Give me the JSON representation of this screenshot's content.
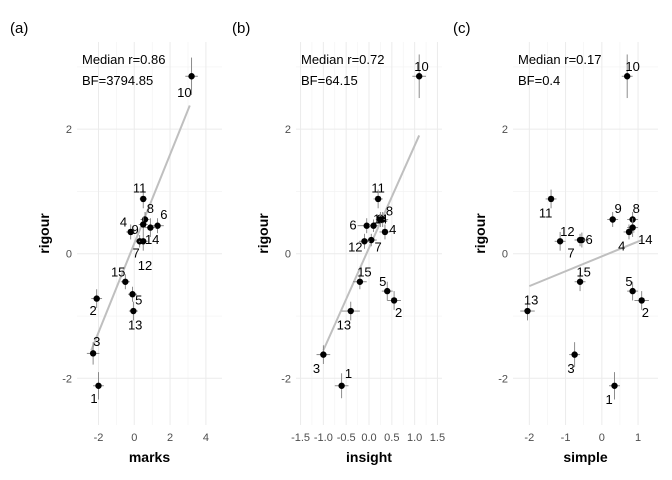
{
  "chart_data": [
    {
      "type": "scatter",
      "panel_tag": "(a)",
      "xlabel": "marks",
      "ylabel": "rigour",
      "xlim": [
        -3.2,
        4.9
      ],
      "ylim": [
        -2.75,
        3.4
      ],
      "xticks": [
        -2,
        0,
        2,
        4
      ],
      "yticks": [
        -2,
        0,
        2
      ],
      "annotations": [
        "Median r=0.86",
        "BF=3794.85"
      ],
      "fit": {
        "x": [
          -2.4,
          3.1
        ],
        "y": [
          -1.55,
          2.38
        ]
      },
      "points": [
        {
          "label": "1",
          "x": -2.0,
          "y": -2.12,
          "xerr": 0.3,
          "yerr": 0.22,
          "lx": -2.25,
          "ly": -2.33
        },
        {
          "label": "2",
          "x": -2.1,
          "y": -0.72,
          "xerr": 0.3,
          "yerr": 0.15,
          "lx": -2.3,
          "ly": -0.92
        },
        {
          "label": "3",
          "x": -2.3,
          "y": -1.6,
          "xerr": 0.35,
          "yerr": 0.18,
          "lx": -2.1,
          "ly": -1.42
        },
        {
          "label": "4",
          "x": -0.2,
          "y": 0.35,
          "xerr": 0.25,
          "yerr": 0.12,
          "lx": -0.6,
          "ly": 0.5
        },
        {
          "label": "5",
          "x": -0.1,
          "y": -0.65,
          "xerr": 0.25,
          "yerr": 0.12,
          "lx": 0.25,
          "ly": -0.75
        },
        {
          "label": "6",
          "x": 1.3,
          "y": 0.45,
          "xerr": 0.35,
          "yerr": 0.12,
          "lx": 1.65,
          "ly": 0.62
        },
        {
          "label": "7",
          "x": 0.3,
          "y": 0.2,
          "xerr": 0.2,
          "yerr": 0.1,
          "lx": 0.1,
          "ly": 0.0
        },
        {
          "label": "8",
          "x": 0.6,
          "y": 0.55,
          "xerr": 0.25,
          "yerr": 0.12,
          "lx": 0.9,
          "ly": 0.72
        },
        {
          "label": "9",
          "x": 0.5,
          "y": 0.47,
          "xerr": 0.25,
          "yerr": 0.12,
          "lx": 0.05,
          "ly": 0.38
        },
        {
          "label": "10",
          "x": 3.2,
          "y": 2.85,
          "xerr": 0.35,
          "yerr": 0.3,
          "lx": 2.8,
          "ly": 2.58
        },
        {
          "label": "11",
          "x": 0.5,
          "y": 0.88,
          "xerr": 0.2,
          "yerr": 0.15,
          "lx": 0.3,
          "ly": 1.05
        },
        {
          "label": "12",
          "x": 0.5,
          "y": 0.2,
          "xerr": 0.25,
          "yerr": 0.15,
          "lx": 0.6,
          "ly": -0.2
        },
        {
          "label": "13",
          "x": -0.05,
          "y": -0.92,
          "xerr": 0.25,
          "yerr": 0.15,
          "lx": 0.05,
          "ly": -1.15
        },
        {
          "label": "14",
          "x": 0.9,
          "y": 0.42,
          "xerr": 0.3,
          "yerr": 0.15,
          "lx": 1.0,
          "ly": 0.22
        },
        {
          "label": "15",
          "x": -0.5,
          "y": -0.45,
          "xerr": 0.25,
          "yerr": 0.12,
          "lx": -0.9,
          "ly": -0.3
        }
      ]
    },
    {
      "type": "scatter",
      "panel_tag": "(b)",
      "xlabel": "insight",
      "ylabel": "rigour",
      "xlim": [
        -1.6,
        1.6
      ],
      "ylim": [
        -2.75,
        3.4
      ],
      "xticks": [
        -1.5,
        -1.0,
        -0.5,
        0.0,
        0.5,
        1.0,
        1.5
      ],
      "xtick_labels": [
        "-1.5",
        "-1.0",
        "-0.5",
        "0.0",
        "0.5",
        "1.0",
        "1.5"
      ],
      "yticks": [
        -2,
        0,
        2
      ],
      "annotations": [
        "Median r=0.72",
        "BF=64.15"
      ],
      "fit": {
        "x": [
          -1.0,
          1.1
        ],
        "y": [
          -1.55,
          1.9
        ]
      },
      "points": [
        {
          "label": "1",
          "x": -0.6,
          "y": -2.12,
          "xerr": 0.15,
          "yerr": 0.2,
          "lx": -0.45,
          "ly": -1.93
        },
        {
          "label": "2",
          "x": 0.55,
          "y": -0.75,
          "xerr": 0.15,
          "yerr": 0.15,
          "lx": 0.65,
          "ly": -0.95
        },
        {
          "label": "3",
          "x": -1.0,
          "y": -1.62,
          "xerr": 0.15,
          "yerr": 0.15,
          "lx": -1.15,
          "ly": -1.85
        },
        {
          "label": "4",
          "x": 0.35,
          "y": 0.35,
          "xerr": 0.12,
          "yerr": 0.12,
          "lx": 0.52,
          "ly": 0.38
        },
        {
          "label": "5",
          "x": 0.4,
          "y": -0.6,
          "xerr": 0.12,
          "yerr": 0.15,
          "lx": 0.3,
          "ly": -0.45
        },
        {
          "label": "6",
          "x": -0.05,
          "y": 0.45,
          "xerr": 0.2,
          "yerr": 0.12,
          "lx": -0.35,
          "ly": 0.45
        },
        {
          "label": "7",
          "x": 0.05,
          "y": 0.22,
          "xerr": 0.12,
          "yerr": 0.1,
          "lx": 0.2,
          "ly": 0.1
        },
        {
          "label": "8",
          "x": 0.3,
          "y": 0.55,
          "xerr": 0.12,
          "yerr": 0.12,
          "lx": 0.45,
          "ly": 0.68
        },
        {
          "label": "9",
          "x": 0.1,
          "y": 0.45,
          "xerr": 0.1,
          "yerr": 0.1,
          "lx": 0.25,
          "ly": 0.55
        },
        {
          "label": "10",
          "x": 1.1,
          "y": 2.85,
          "xerr": 0.15,
          "yerr": 0.35,
          "lx": 1.15,
          "ly": 3.0
        },
        {
          "label": "11",
          "x": 0.2,
          "y": 0.88,
          "xerr": 0.1,
          "yerr": 0.15,
          "lx": 0.2,
          "ly": 1.05
        },
        {
          "label": "12",
          "x": -0.1,
          "y": 0.2,
          "xerr": 0.12,
          "yerr": 0.12,
          "lx": -0.3,
          "ly": 0.1
        },
        {
          "label": "13",
          "x": -0.4,
          "y": -0.92,
          "xerr": 0.2,
          "yerr": 0.15,
          "lx": -0.55,
          "ly": -1.15
        },
        {
          "label": "14",
          "x": 0.25,
          "y": 0.55,
          "xerr": 0.1,
          "yerr": 0.12,
          "lx": 0.25,
          "ly": 0.55
        },
        {
          "label": "15",
          "x": -0.2,
          "y": -0.45,
          "xerr": 0.15,
          "yerr": 0.12,
          "lx": -0.1,
          "ly": -0.3
        }
      ]
    },
    {
      "type": "scatter",
      "panel_tag": "(c)",
      "xlabel": "simple",
      "ylabel": "rigour",
      "xlim": [
        -2.45,
        1.55
      ],
      "ylim": [
        -2.75,
        3.4
      ],
      "xticks": [
        -2,
        -1,
        0,
        1
      ],
      "yticks": [
        -2,
        0,
        2
      ],
      "annotations": [
        "Median r=0.17",
        "BF=0.4"
      ],
      "fit": {
        "x": [
          -2.0,
          1.1
        ],
        "y": [
          -0.52,
          0.22
        ]
      },
      "points": [
        {
          "label": "1",
          "x": 0.35,
          "y": -2.12,
          "xerr": 0.15,
          "yerr": 0.22,
          "lx": 0.2,
          "ly": -2.35
        },
        {
          "label": "2",
          "x": 1.1,
          "y": -0.75,
          "xerr": 0.2,
          "yerr": 0.15,
          "lx": 1.2,
          "ly": -0.95
        },
        {
          "label": "3",
          "x": -0.75,
          "y": -1.62,
          "xerr": 0.15,
          "yerr": 0.2,
          "lx": -0.85,
          "ly": -1.85
        },
        {
          "label": "4",
          "x": 0.75,
          "y": 0.35,
          "xerr": 0.15,
          "yerr": 0.12,
          "lx": 0.55,
          "ly": 0.12
        },
        {
          "label": "5",
          "x": 0.85,
          "y": -0.6,
          "xerr": 0.15,
          "yerr": 0.15,
          "lx": 0.75,
          "ly": -0.45
        },
        {
          "label": "6",
          "x": -0.55,
          "y": 0.22,
          "xerr": 0.2,
          "yerr": 0.12,
          "lx": -0.35,
          "ly": 0.22
        },
        {
          "label": "7",
          "x": -0.6,
          "y": 0.22,
          "xerr": 0.15,
          "yerr": 0.1,
          "lx": -0.85,
          "ly": 0.0
        },
        {
          "label": "8",
          "x": 0.85,
          "y": 0.55,
          "xerr": 0.15,
          "yerr": 0.12,
          "lx": 0.95,
          "ly": 0.72
        },
        {
          "label": "9",
          "x": 0.3,
          "y": 0.55,
          "xerr": 0.15,
          "yerr": 0.12,
          "lx": 0.45,
          "ly": 0.72
        },
        {
          "label": "10",
          "x": 0.7,
          "y": 2.85,
          "xerr": 0.15,
          "yerr": 0.35,
          "lx": 0.85,
          "ly": 3.0
        },
        {
          "label": "11",
          "x": -1.4,
          "y": 0.88,
          "xerr": 0.15,
          "yerr": 0.15,
          "lx": -1.55,
          "ly": 0.65
        },
        {
          "label": "12",
          "x": -1.15,
          "y": 0.2,
          "xerr": 0.15,
          "yerr": 0.15,
          "lx": -0.95,
          "ly": 0.35
        },
        {
          "label": "13",
          "x": -2.05,
          "y": -0.92,
          "xerr": 0.2,
          "yerr": 0.15,
          "lx": -1.95,
          "ly": -0.75
        },
        {
          "label": "14",
          "x": 0.85,
          "y": 0.42,
          "xerr": 0.15,
          "yerr": 0.15,
          "lx": 1.2,
          "ly": 0.22
        },
        {
          "label": "15",
          "x": -0.6,
          "y": -0.45,
          "xerr": 0.15,
          "yerr": 0.15,
          "lx": -0.5,
          "ly": -0.3
        }
      ]
    }
  ]
}
